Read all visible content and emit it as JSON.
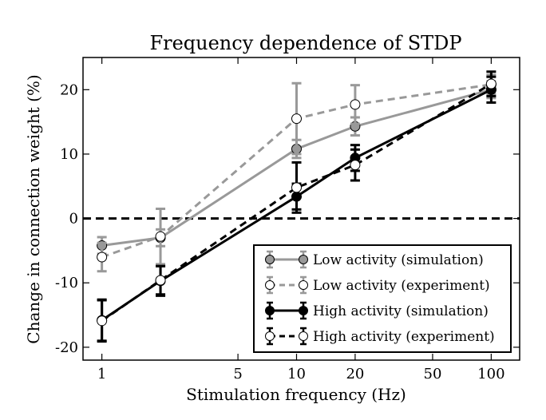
{
  "chart_data": {
    "type": "line",
    "title": "Frequency dependence of STDP",
    "xlabel": "Stimulation frequency (Hz)",
    "ylabel": "Change in connection weight (%)",
    "xscale": "log",
    "xlim": [
      0.8,
      140
    ],
    "ylim": [
      -22,
      25
    ],
    "xticks": [
      1,
      5,
      10,
      20,
      50,
      100
    ],
    "xtick_labels": [
      "1",
      "5",
      "10",
      "20",
      "50",
      "100"
    ],
    "yticks": [
      -20,
      -10,
      0,
      10,
      20
    ],
    "ytick_labels": [
      "-20",
      "-10",
      "0",
      "10",
      "20"
    ],
    "reference_line": {
      "y": 0,
      "style": "dashed",
      "color": "#000000"
    },
    "grid": false,
    "legend_position": "lower-right",
    "series": [
      {
        "name": "Low activity (simulation)",
        "color": "#999999",
        "line_style": "solid",
        "marker_fill": "#999999",
        "x": [
          1,
          2,
          10,
          20,
          100
        ],
        "y": [
          -4.2,
          -3.0,
          10.8,
          14.3,
          20.0
        ],
        "err": [
          1.3,
          1.3,
          1.4,
          1.4,
          1.3
        ]
      },
      {
        "name": "Low activity (experiment)",
        "color": "#999999",
        "line_style": "dashed",
        "marker_fill": "#ffffff",
        "x": [
          1,
          2,
          10,
          20,
          100
        ],
        "y": [
          -6.0,
          -2.8,
          15.5,
          17.7,
          20.8
        ],
        "err": [
          2.2,
          4.3,
          5.5,
          3.0,
          1.5
        ]
      },
      {
        "name": "High activity (simulation)",
        "color": "#000000",
        "line_style": "solid",
        "marker_fill": "#000000",
        "x": [
          1,
          2,
          10,
          20,
          100
        ],
        "y": [
          -15.8,
          -9.7,
          3.4,
          9.4,
          20.0
        ],
        "err": [
          3.2,
          2.3,
          2.0,
          2.0,
          2.0
        ]
      },
      {
        "name": "High activity (experiment)",
        "color": "#000000",
        "line_style": "dashed",
        "marker_fill": "#ffffff",
        "x": [
          1,
          2,
          10,
          20,
          100
        ],
        "y": [
          -15.9,
          -9.6,
          4.8,
          8.3,
          20.9
        ],
        "err": [
          3.2,
          2.2,
          3.9,
          2.4,
          1.9
        ]
      }
    ]
  }
}
